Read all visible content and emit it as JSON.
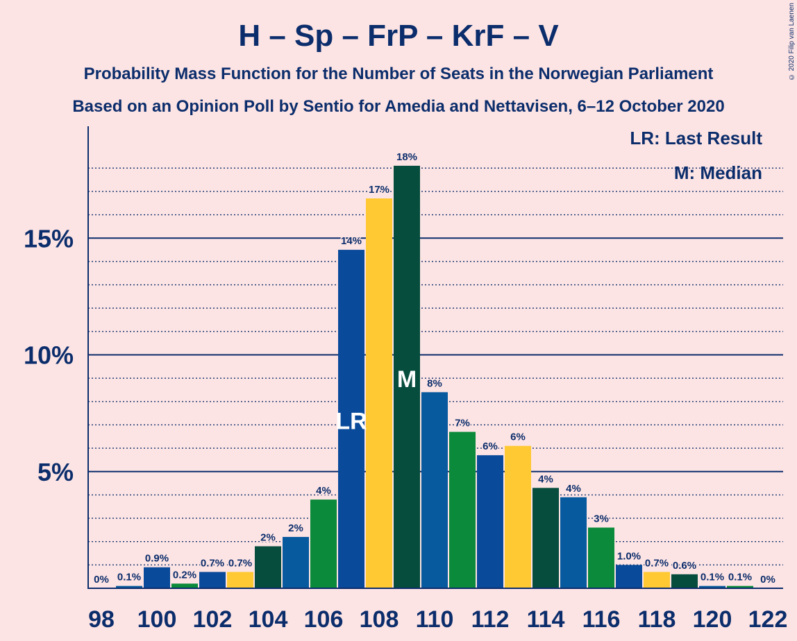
{
  "header": {
    "title": "H – Sp – FrP – KrF – V",
    "subtitle1": "Probability Mass Function for the Number of Seats in the Norwegian Parliament",
    "subtitle2": "Based on an Opinion Poll by Sentio for Amedia and Nettavisen, 6–12 October 2020",
    "copyright": "© 2020 Filip van Laenen"
  },
  "legend": {
    "lr": "LR: Last Result",
    "m": "M: Median"
  },
  "colors": {
    "H": "#0a4a9a",
    "Sp": "#0a8a3a",
    "FrP": "#ffc933",
    "KrF": "#064d3e",
    "V": "#075a9e",
    "axis": "#0b2d6b",
    "background": "#fde4e4"
  },
  "chart_data": {
    "type": "bar",
    "x": [
      98,
      99,
      100,
      101,
      102,
      103,
      104,
      105,
      106,
      107,
      108,
      109,
      110,
      111,
      112,
      113,
      114,
      115,
      116,
      117,
      118,
      119,
      120,
      121,
      122
    ],
    "values": [
      0,
      0.1,
      0.9,
      0.2,
      0.7,
      0.7,
      1.8,
      2.2,
      3.8,
      14.5,
      16.7,
      18.1,
      8.4,
      6.7,
      5.7,
      6.1,
      4.3,
      3.9,
      2.6,
      1.0,
      0.7,
      0.6,
      0.1,
      0.1,
      0
    ],
    "labels": [
      "0%",
      "0.1%",
      "0.9%",
      "0.2%",
      "0.7%",
      "0.7%",
      "2%",
      "2%",
      "4%",
      "14%",
      "17%",
      "18%",
      "8%",
      "7%",
      "6%",
      "6%",
      "4%",
      "4%",
      "3%",
      "1.0%",
      "0.7%",
      "0.6%",
      "0.1%",
      "0.1%",
      "0%"
    ],
    "colors": [
      "#0a4a9a",
      "#075a9e",
      "#0a4a9a",
      "#0a8a3a",
      "#0a4a9a",
      "#ffc933",
      "#064d3e",
      "#075a9e",
      "#0a8a3a",
      "#0a4a9a",
      "#ffc933",
      "#064d3e",
      "#075a9e",
      "#0a8a3a",
      "#0a4a9a",
      "#ffc933",
      "#064d3e",
      "#075a9e",
      "#0a8a3a",
      "#0a4a9a",
      "#ffc933",
      "#064d3e",
      "#075a9e",
      "#0a8a3a",
      "#0a4a9a"
    ],
    "markers": [
      {
        "x": 107,
        "text": "LR"
      },
      {
        "x": 109,
        "text": "M"
      }
    ],
    "x_ticks": [
      "98",
      "100",
      "102",
      "104",
      "106",
      "108",
      "110",
      "112",
      "114",
      "116",
      "118",
      "120",
      "122"
    ],
    "y_ticks": [
      "5%",
      "10%",
      "15%"
    ],
    "y_tick_values": [
      5,
      10,
      15
    ],
    "ylim": [
      0,
      19.7
    ]
  }
}
